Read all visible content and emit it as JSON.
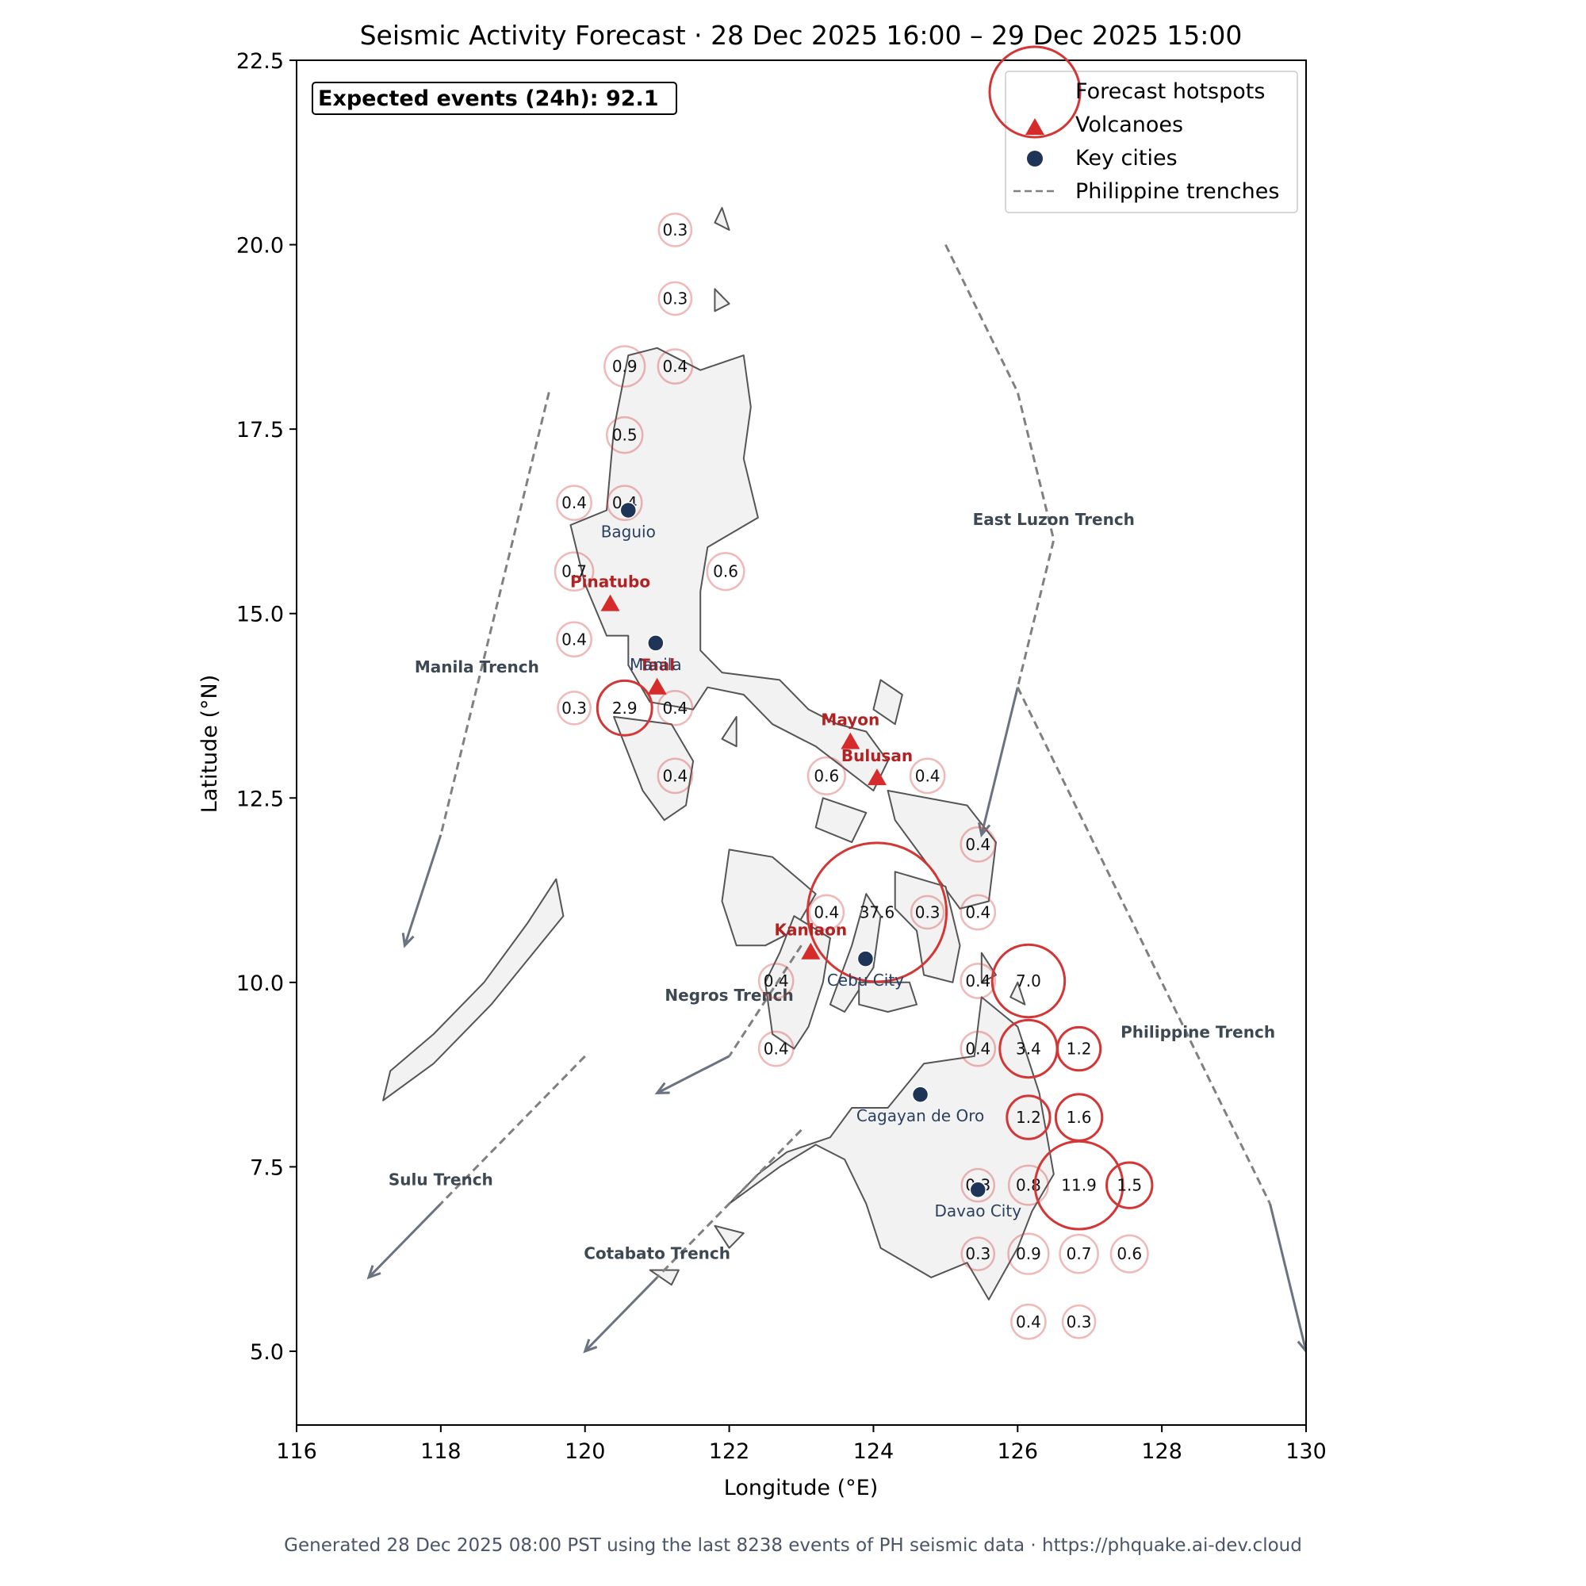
{
  "title": "Seismic Activity Forecast · 28 Dec 2025 16:00 – 29 Dec 2025 15:00",
  "expected_events": "Expected events (24h): 92.1",
  "footer": "Generated 28 Dec 2025 08:00 PST using the last 8238 events of PH seismic data · https://phquake.ai-dev.cloud",
  "axes": {
    "xlabel": "Longitude (°E)",
    "ylabel": "Latitude (°N)",
    "xlim": [
      116,
      130
    ],
    "ylim": [
      4,
      22.5
    ],
    "xticks": [
      116,
      118,
      120,
      122,
      124,
      126,
      128,
      130
    ],
    "yticks": [
      5.0,
      7.5,
      10.0,
      12.5,
      15.0,
      17.5,
      20.0,
      22.5
    ],
    "ytick_labels": [
      "5.0",
      "7.5",
      "10.0",
      "12.5",
      "15.0",
      "17.5",
      "20.0",
      "22.5"
    ]
  },
  "legend": {
    "placement": "top-right",
    "items": [
      {
        "label": "Forecast hotspots",
        "marker": "circle-outline"
      },
      {
        "label": "Volcanoes",
        "marker": "triangle"
      },
      {
        "label": "Key cities",
        "marker": "dot"
      },
      {
        "label": "Philippine trenches",
        "marker": "dashed-line"
      }
    ]
  },
  "colors": {
    "hotspot": "#d43535",
    "volcano": "#d62b2b",
    "volcano_label": "#b22222",
    "city": "#1f3557",
    "city_label": "#2a3f5f",
    "trench": "#808080",
    "trench_label": "#3d4852",
    "arrow": "#6b7280",
    "land": "#f2f2f2",
    "coast": "#555555"
  },
  "chart_data": {
    "type": "map",
    "hotspots": [
      {
        "lon": 121.25,
        "lat": 20.2,
        "value": "0.3"
      },
      {
        "lon": 121.25,
        "lat": 19.27,
        "value": "0.3"
      },
      {
        "lon": 120.55,
        "lat": 18.35,
        "value": "0.9"
      },
      {
        "lon": 121.25,
        "lat": 18.35,
        "value": "0.4"
      },
      {
        "lon": 120.55,
        "lat": 17.42,
        "value": "0.5"
      },
      {
        "lon": 119.85,
        "lat": 16.5,
        "value": "0.4"
      },
      {
        "lon": 120.55,
        "lat": 16.5,
        "value": "0.4"
      },
      {
        "lon": 119.85,
        "lat": 15.57,
        "value": "0.7"
      },
      {
        "lon": 121.95,
        "lat": 15.57,
        "value": "0.6"
      },
      {
        "lon": 119.85,
        "lat": 14.65,
        "value": "0.4"
      },
      {
        "lon": 119.85,
        "lat": 13.72,
        "value": "0.3"
      },
      {
        "lon": 120.55,
        "lat": 13.72,
        "value": "2.9"
      },
      {
        "lon": 121.25,
        "lat": 13.72,
        "value": "0.4"
      },
      {
        "lon": 121.25,
        "lat": 12.8,
        "value": "0.4"
      },
      {
        "lon": 123.35,
        "lat": 12.8,
        "value": "0.6"
      },
      {
        "lon": 124.75,
        "lat": 12.8,
        "value": "0.4"
      },
      {
        "lon": 125.45,
        "lat": 11.87,
        "value": "0.4"
      },
      {
        "lon": 123.35,
        "lat": 10.95,
        "value": "0.4"
      },
      {
        "lon": 124.05,
        "lat": 10.95,
        "value": "37.6"
      },
      {
        "lon": 124.75,
        "lat": 10.95,
        "value": "0.3"
      },
      {
        "lon": 125.45,
        "lat": 10.95,
        "value": "0.4"
      },
      {
        "lon": 122.65,
        "lat": 10.02,
        "value": "0.4"
      },
      {
        "lon": 125.45,
        "lat": 10.02,
        "value": "0.4"
      },
      {
        "lon": 126.15,
        "lat": 10.02,
        "value": "7.0"
      },
      {
        "lon": 122.65,
        "lat": 9.1,
        "value": "0.4"
      },
      {
        "lon": 125.45,
        "lat": 9.1,
        "value": "0.4"
      },
      {
        "lon": 126.15,
        "lat": 9.1,
        "value": "3.4"
      },
      {
        "lon": 126.85,
        "lat": 9.1,
        "value": "1.2"
      },
      {
        "lon": 126.15,
        "lat": 8.17,
        "value": "1.2"
      },
      {
        "lon": 126.85,
        "lat": 8.17,
        "value": "1.6"
      },
      {
        "lon": 125.45,
        "lat": 7.25,
        "value": "0.3"
      },
      {
        "lon": 126.15,
        "lat": 7.25,
        "value": "0.8"
      },
      {
        "lon": 126.85,
        "lat": 7.25,
        "value": "11.9"
      },
      {
        "lon": 127.55,
        "lat": 7.25,
        "value": "1.5"
      },
      {
        "lon": 125.45,
        "lat": 6.32,
        "value": "0.3"
      },
      {
        "lon": 126.15,
        "lat": 6.32,
        "value": "0.9"
      },
      {
        "lon": 126.85,
        "lat": 6.32,
        "value": "0.7"
      },
      {
        "lon": 127.55,
        "lat": 6.32,
        "value": "0.6"
      },
      {
        "lon": 126.15,
        "lat": 5.4,
        "value": "0.4"
      },
      {
        "lon": 126.85,
        "lat": 5.4,
        "value": "0.3"
      }
    ],
    "volcanoes": [
      {
        "name": "Pinatubo",
        "lon": 120.35,
        "lat": 15.13
      },
      {
        "name": "Taal",
        "lon": 121.0,
        "lat": 14.0
      },
      {
        "name": "Mayon",
        "lon": 123.68,
        "lat": 13.26
      },
      {
        "name": "Bulusan",
        "lon": 124.05,
        "lat": 12.77
      },
      {
        "name": "Kanlaon",
        "lon": 123.13,
        "lat": 10.41
      }
    ],
    "cities": [
      {
        "name": "Baguio",
        "lon": 120.6,
        "lat": 16.4
      },
      {
        "name": "Manila",
        "lon": 120.98,
        "lat": 14.6
      },
      {
        "name": "Cebu City",
        "lon": 123.89,
        "lat": 10.32
      },
      {
        "name": "Cagayan de Oro",
        "lon": 124.65,
        "lat": 8.48
      },
      {
        "name": "Davao City",
        "lon": 125.45,
        "lat": 7.19
      }
    ],
    "trenches": [
      {
        "name": "Manila Trench",
        "label_lon": 118.5,
        "label_lat": 14.2,
        "path": [
          [
            119.5,
            18.0
          ],
          [
            118.0,
            12.0
          ]
        ],
        "arrow": [
          [
            118.0,
            12.0
          ],
          [
            117.5,
            10.5
          ]
        ]
      },
      {
        "name": "East Luzon Trench",
        "label_lon": 126.5,
        "label_lat": 16.2,
        "path": [
          [
            125.0,
            20.0
          ],
          [
            126.0,
            18.0
          ],
          [
            126.5,
            16.0
          ],
          [
            126.0,
            14.0
          ]
        ],
        "arrow": [
          [
            126.0,
            14.0
          ],
          [
            125.5,
            12.0
          ]
        ]
      },
      {
        "name": "Philippine Trench",
        "label_lon": 128.5,
        "label_lat": 9.25,
        "path": [
          [
            126.0,
            14.0
          ],
          [
            129.5,
            7.0
          ]
        ],
        "arrow": [
          [
            129.5,
            7.0
          ],
          [
            130.0,
            5.0
          ]
        ]
      },
      {
        "name": "Negros Trench",
        "label_lon": 122.0,
        "label_lat": 9.75,
        "path": [
          [
            123.0,
            10.5
          ],
          [
            122.0,
            9.0
          ]
        ],
        "arrow": [
          [
            122.0,
            9.0
          ],
          [
            121.0,
            8.5
          ]
        ]
      },
      {
        "name": "Sulu Trench",
        "label_lon": 118.0,
        "label_lat": 7.25,
        "path": [
          [
            120.0,
            9.0
          ],
          [
            118.0,
            7.0
          ]
        ],
        "arrow": [
          [
            118.0,
            7.0
          ],
          [
            117.0,
            6.0
          ]
        ]
      },
      {
        "name": "Cotabato Trench",
        "label_lon": 121.0,
        "label_lat": 6.25,
        "path": [
          [
            123.0,
            8.0
          ],
          [
            121.0,
            6.0
          ]
        ],
        "arrow": [
          [
            121.0,
            6.0
          ],
          [
            120.0,
            5.0
          ]
        ]
      }
    ]
  }
}
